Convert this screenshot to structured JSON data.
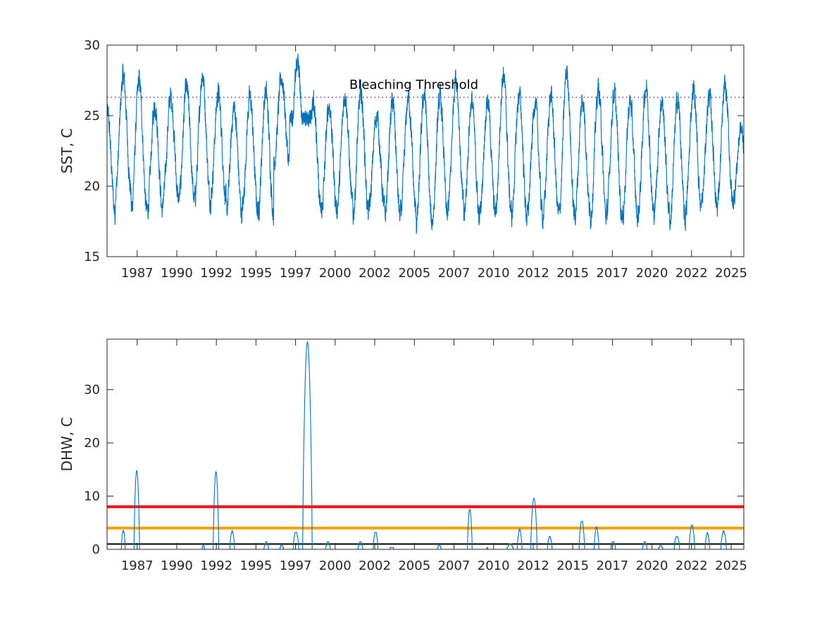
{
  "chart_data": [
    {
      "type": "line",
      "ylabel": "SST, C",
      "xlabel": "",
      "ylim": [
        15,
        30
      ],
      "xlim": [
        1985.1,
        2025.3
      ],
      "yticks": [
        15,
        20,
        25,
        30
      ],
      "xtick_labels": [
        "1987",
        "1990",
        "1992",
        "1995",
        "1997",
        "2000",
        "2002",
        "2005",
        "2007",
        "2010",
        "2012",
        "2015",
        "2017",
        "2020",
        "2022",
        "2025"
      ],
      "xtick_values": [
        1987.0,
        1989.5,
        1992.0,
        1994.5,
        1997.0,
        1999.5,
        2002.0,
        2004.5,
        2007.0,
        2009.5,
        2012.0,
        2014.5,
        2017.0,
        2019.5,
        2022.0,
        2024.5
      ],
      "grid": false,
      "reference_lines": [
        {
          "name": "Bleaching Threshold",
          "y": 26.3,
          "style": "dotted",
          "color": "#7E2F8E"
        }
      ],
      "annotations": [
        {
          "text": "Bleaching Threshold",
          "x": 2000.4,
          "y": 26.9
        }
      ],
      "series_color": "#0072BD",
      "seasonal_cycle": {
        "yearly_max": [
          [
            1985,
            24.8
          ],
          [
            1986,
            27.8
          ],
          [
            1987,
            27.7
          ],
          [
            1988,
            25.7
          ],
          [
            1989,
            26.3
          ],
          [
            1990,
            26.8
          ],
          [
            1991,
            28.1
          ],
          [
            1992,
            26.7
          ],
          [
            1993,
            25.5
          ],
          [
            1994,
            26.2
          ],
          [
            1995,
            26.6
          ],
          [
            1996,
            27.4
          ],
          [
            1997,
            29.5
          ],
          [
            1998,
            26.0
          ],
          [
            1999,
            25.7
          ],
          [
            2000,
            26.5
          ],
          [
            2001,
            26.8
          ],
          [
            2002,
            24.9
          ],
          [
            2003,
            25.9
          ],
          [
            2004,
            26.2
          ],
          [
            2005,
            26.6
          ],
          [
            2006,
            26.0
          ],
          [
            2007,
            28.0
          ],
          [
            2008,
            26.0
          ],
          [
            2009,
            25.8
          ],
          [
            2010,
            28.1
          ],
          [
            2011,
            26.6
          ],
          [
            2012,
            25.9
          ],
          [
            2013,
            26.1
          ],
          [
            2014,
            28.4
          ],
          [
            2015,
            26.0
          ],
          [
            2016,
            26.9
          ],
          [
            2017,
            26.7
          ],
          [
            2018,
            25.8
          ],
          [
            2019,
            27.2
          ],
          [
            2020,
            26.0
          ],
          [
            2021,
            26.0
          ],
          [
            2022,
            27.0
          ],
          [
            2023,
            26.2
          ],
          [
            2024,
            27.4
          ],
          [
            2025,
            24.0
          ]
        ],
        "yearly_min": [
          [
            1985,
            17.0
          ],
          [
            1986,
            18.7
          ],
          [
            1987,
            20.1
          ],
          [
            1988,
            17.1
          ],
          [
            1989,
            18.8
          ],
          [
            1990,
            19.2
          ],
          [
            1991,
            18.9
          ],
          [
            1992,
            19.2
          ],
          [
            1993,
            19.0
          ],
          [
            1994,
            17.5
          ],
          [
            1995,
            18.9
          ],
          [
            1996,
            17.6
          ],
          [
            1997,
            24.0
          ],
          [
            1998,
            19.4
          ],
          [
            1999,
            17.3
          ],
          [
            2000,
            18.8
          ],
          [
            2001,
            18.5
          ],
          [
            2002,
            17.6
          ],
          [
            2003,
            19.1
          ],
          [
            2004,
            16.9
          ],
          [
            2005,
            18.8
          ],
          [
            2006,
            16.4
          ],
          [
            2007,
            18.2
          ],
          [
            2008,
            19.0
          ],
          [
            2009,
            17.1
          ],
          [
            2010,
            18.6
          ],
          [
            2011,
            18.0
          ],
          [
            2012,
            17.6
          ],
          [
            2013,
            18.0
          ],
          [
            2014,
            18.0
          ],
          [
            2015,
            17.9
          ],
          [
            2016,
            18.0
          ],
          [
            2017,
            17.8
          ],
          [
            2018,
            18.1
          ],
          [
            2019,
            17.3
          ],
          [
            2020,
            18.5
          ],
          [
            2021,
            18.0
          ],
          [
            2022,
            17.0
          ],
          [
            2023,
            19.3
          ],
          [
            2024,
            18.3
          ],
          [
            2025,
            19.0
          ]
        ],
        "peak_phase": 0.12,
        "noise_amplitude": 0.8
      }
    },
    {
      "type": "line",
      "ylabel": "DHW, C",
      "xlabel": "",
      "ylim": [
        0,
        39.5
      ],
      "xlim": [
        1985.1,
        2025.3
      ],
      "yticks": [
        0,
        10,
        20,
        30
      ],
      "xtick_labels": [
        "1987",
        "1990",
        "1992",
        "1995",
        "1997",
        "2000",
        "2002",
        "2005",
        "2007",
        "2010",
        "2012",
        "2015",
        "2017",
        "2020",
        "2022",
        "2025"
      ],
      "xtick_values": [
        1987.0,
        1989.5,
        1992.0,
        1994.5,
        1997.0,
        1999.5,
        2002.0,
        2004.5,
        2007.0,
        2009.5,
        2012.0,
        2014.5,
        2017.0,
        2019.5,
        2022.0,
        2024.5
      ],
      "grid": false,
      "reference_lines": [
        {
          "y": 8,
          "color": "#FF0000",
          "width": 4
        },
        {
          "y": 4,
          "color": "#F5A300",
          "width": 4
        },
        {
          "y": 1,
          "color": "#000000",
          "width": 2
        }
      ],
      "series_color": "#0072BD",
      "events": [
        {
          "start": 1986.0,
          "end": 1986.25,
          "peak": 3.5
        },
        {
          "start": 1986.8,
          "end": 1987.15,
          "peak": 14.8
        },
        {
          "start": 1991.1,
          "end": 1991.25,
          "peak": 0.8
        },
        {
          "start": 1991.8,
          "end": 1992.15,
          "peak": 14.6
        },
        {
          "start": 1992.85,
          "end": 1993.15,
          "peak": 3.4
        },
        {
          "start": 1995.0,
          "end": 1995.3,
          "peak": 1.3
        },
        {
          "start": 1996.0,
          "end": 1996.25,
          "peak": 0.7
        },
        {
          "start": 1996.85,
          "end": 1997.2,
          "peak": 3.3
        },
        {
          "start": 1997.45,
          "end": 1998.05,
          "peak": 39.0
        },
        {
          "start": 1998.9,
          "end": 1999.2,
          "peak": 1.4
        },
        {
          "start": 2000.95,
          "end": 2001.25,
          "peak": 1.4
        },
        {
          "start": 2001.9,
          "end": 2002.2,
          "peak": 3.3
        },
        {
          "start": 2002.95,
          "end": 2003.2,
          "peak": 0.5
        },
        {
          "start": 2005.95,
          "end": 2006.2,
          "peak": 0.7
        },
        {
          "start": 2007.85,
          "end": 2008.15,
          "peak": 7.5
        },
        {
          "start": 2009.0,
          "end": 2009.2,
          "peak": 0.2
        },
        {
          "start": 2010.35,
          "end": 2010.75,
          "peak": 1.0
        },
        {
          "start": 2011.0,
          "end": 2011.3,
          "peak": 3.7
        },
        {
          "start": 2011.85,
          "end": 2012.25,
          "peak": 9.6
        },
        {
          "start": 2012.9,
          "end": 2013.2,
          "peak": 2.4
        },
        {
          "start": 2014.9,
          "end": 2015.25,
          "peak": 5.4
        },
        {
          "start": 2015.85,
          "end": 2016.15,
          "peak": 4.2
        },
        {
          "start": 2016.9,
          "end": 2017.2,
          "peak": 1.5
        },
        {
          "start": 2018.9,
          "end": 2019.2,
          "peak": 1.3
        },
        {
          "start": 2019.9,
          "end": 2020.2,
          "peak": 0.6
        },
        {
          "start": 2020.9,
          "end": 2021.25,
          "peak": 2.5
        },
        {
          "start": 2021.85,
          "end": 2022.2,
          "peak": 4.5
        },
        {
          "start": 2022.85,
          "end": 2023.15,
          "peak": 3.0
        },
        {
          "start": 2023.85,
          "end": 2024.2,
          "peak": 3.4
        }
      ]
    }
  ]
}
